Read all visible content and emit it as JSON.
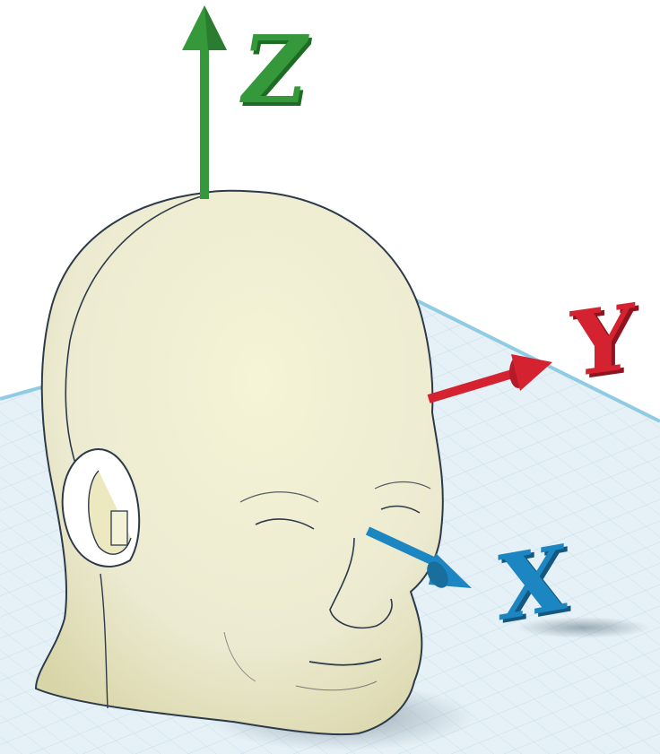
{
  "scene": {
    "axes": [
      {
        "id": "z",
        "label": "Z",
        "color": "#35993b"
      },
      {
        "id": "y",
        "label": "Y",
        "color": "#d42231"
      },
      {
        "id": "x",
        "label": "X",
        "color": "#1c86c2"
      }
    ],
    "colors": {
      "workplane": "#e6f1f7",
      "grid_line": "#c5dce9",
      "workplane_edge": "#8fcbe3",
      "head_fill": "#eeecc4",
      "head_shade": "#d6d3a3",
      "outline": "#2d3a4a"
    },
    "object": "head-model"
  }
}
